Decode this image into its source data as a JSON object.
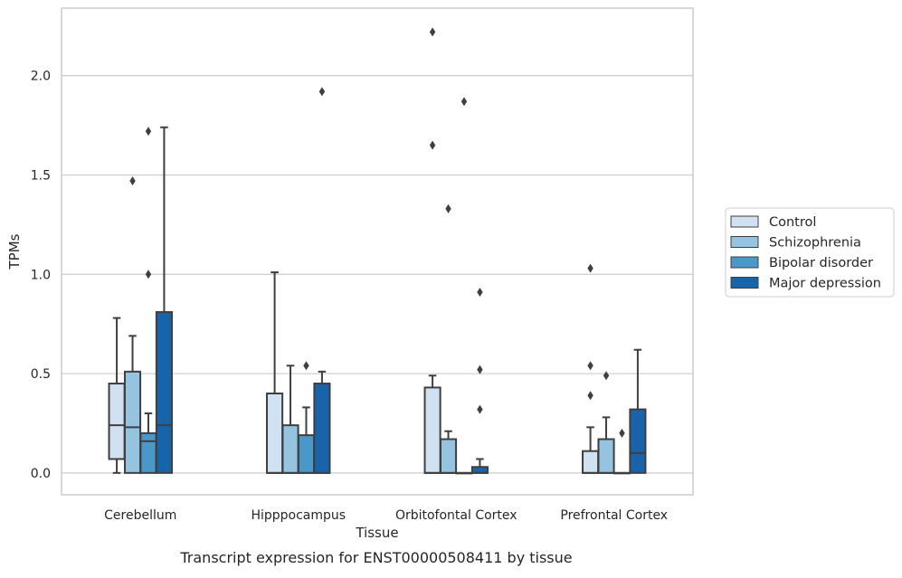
{
  "chart_data": {
    "type": "boxplot",
    "caption": "Transcript expression for ENST00000508411 by tissue",
    "xlabel": "Tissue",
    "ylabel": "TPMs",
    "ylim": [
      -0.11,
      2.34
    ],
    "yticks": [
      "0.0",
      "0.5",
      "1.0",
      "1.5",
      "2.0"
    ],
    "ytick_values": [
      0,
      0.5,
      1.0,
      1.5,
      2.0
    ],
    "grid": true,
    "legend_position": "right",
    "categories": [
      "Cerebellum",
      "Hipppocampus",
      "Orbitofontal Cortex",
      "Prefrontal Cortex"
    ],
    "series": [
      {
        "name": "Control",
        "color": "#d0e1f2",
        "boxes": [
          {
            "whislo": 0.0,
            "q1": 0.07,
            "med": 0.24,
            "q3": 0.45,
            "whishi": 0.78,
            "fliers": []
          },
          {
            "whislo": 0.0,
            "q1": 0.0,
            "med": 0.0,
            "q3": 0.4,
            "whishi": 1.01,
            "fliers": []
          },
          {
            "whislo": 0.0,
            "q1": 0.0,
            "med": 0.0,
            "q3": 0.43,
            "whishi": 0.49,
            "fliers": [
              1.65,
              2.22
            ]
          },
          {
            "whislo": 0.0,
            "q1": 0.0,
            "med": 0.0,
            "q3": 0.11,
            "whishi": 0.23,
            "fliers": [
              0.39,
              0.54,
              1.03
            ]
          }
        ]
      },
      {
        "name": "Schizophrenia",
        "color": "#94c4df",
        "boxes": [
          {
            "whislo": 0.0,
            "q1": 0.0,
            "med": 0.23,
            "q3": 0.51,
            "whishi": 0.69,
            "fliers": [
              1.47
            ]
          },
          {
            "whislo": 0.0,
            "q1": 0.0,
            "med": 0.0,
            "q3": 0.24,
            "whishi": 0.54,
            "fliers": []
          },
          {
            "whislo": 0.0,
            "q1": 0.0,
            "med": 0.0,
            "q3": 0.17,
            "whishi": 0.21,
            "fliers": [
              1.33
            ]
          },
          {
            "whislo": 0.0,
            "q1": 0.0,
            "med": 0.0,
            "q3": 0.17,
            "whishi": 0.28,
            "fliers": [
              0.49
            ]
          }
        ]
      },
      {
        "name": "Bipolar disorder",
        "color": "#4a98c9",
        "boxes": [
          {
            "whislo": 0.0,
            "q1": 0.0,
            "med": 0.16,
            "q3": 0.2,
            "whishi": 0.3,
            "fliers": [
              1.0,
              1.72
            ]
          },
          {
            "whislo": 0.0,
            "q1": 0.0,
            "med": 0.0,
            "q3": 0.19,
            "whishi": 0.33,
            "fliers": [
              0.54
            ]
          },
          {
            "whislo": 0.0,
            "q1": 0.0,
            "med": 0.0,
            "q3": 0.0,
            "whishi": 0.0,
            "fliers": [
              1.87
            ]
          },
          {
            "whislo": 0.0,
            "q1": 0.0,
            "med": 0.0,
            "q3": 0.0,
            "whishi": 0.0,
            "fliers": [
              0.2
            ]
          }
        ]
      },
      {
        "name": "Major depression",
        "color": "#1764ab",
        "boxes": [
          {
            "whislo": 0.0,
            "q1": 0.0,
            "med": 0.24,
            "q3": 0.81,
            "whishi": 1.74,
            "fliers": []
          },
          {
            "whislo": 0.0,
            "q1": 0.0,
            "med": 0.0,
            "q3": 0.45,
            "whishi": 0.51,
            "fliers": [
              1.92
            ]
          },
          {
            "whislo": 0.0,
            "q1": 0.0,
            "med": 0.0,
            "q3": 0.03,
            "whishi": 0.07,
            "fliers": [
              0.32,
              0.52,
              0.91
            ]
          },
          {
            "whislo": 0.0,
            "q1": 0.0,
            "med": 0.1,
            "q3": 0.32,
            "whishi": 0.62,
            "fliers": []
          }
        ]
      }
    ]
  }
}
